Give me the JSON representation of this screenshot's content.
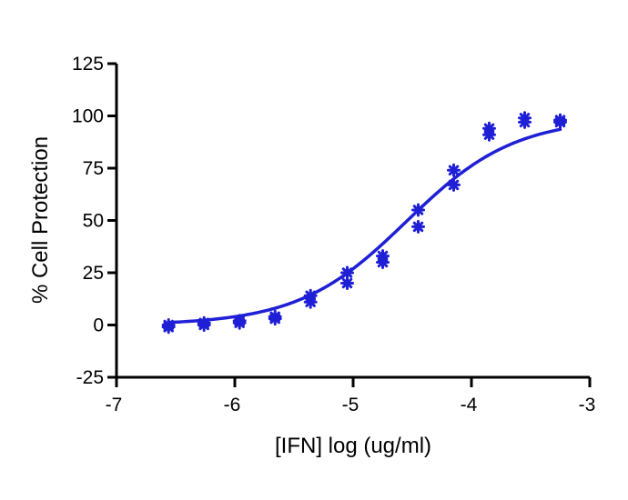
{
  "chart_data": {
    "type": "scatter",
    "title": "",
    "xlabel": "[IFN] log (ug/ml)",
    "ylabel": "% Cell Protection",
    "xlim": [
      -7,
      -3
    ],
    "ylim": [
      -25,
      125
    ],
    "x_ticks": [
      -7,
      -6,
      -5,
      -4,
      -3
    ],
    "y_ticks": [
      -25,
      0,
      25,
      50,
      75,
      100,
      125
    ],
    "x_tick_labels": [
      "-7",
      "-6",
      "-5",
      "-4",
      "-3"
    ],
    "y_tick_labels": [
      "-25",
      "0",
      "25",
      "50",
      "75",
      "100",
      "125"
    ],
    "grid": false,
    "colors": {
      "series": "#1f1fd6",
      "axis": "#000000"
    },
    "marker": "asterisk",
    "series": [
      {
        "points": [
          [
            -6.56,
            -1
          ],
          [
            -6.56,
            0
          ],
          [
            -6.26,
            0
          ],
          [
            -6.26,
            1
          ],
          [
            -5.96,
            1
          ],
          [
            -5.96,
            2
          ],
          [
            -5.66,
            3
          ],
          [
            -5.66,
            4
          ],
          [
            -5.36,
            11
          ],
          [
            -5.36,
            14
          ],
          [
            -5.05,
            20
          ],
          [
            -5.05,
            25
          ],
          [
            -4.75,
            30
          ],
          [
            -4.75,
            33
          ],
          [
            -4.45,
            47
          ],
          [
            -4.45,
            55
          ],
          [
            -4.15,
            67
          ],
          [
            -4.15,
            74
          ],
          [
            -3.85,
            91
          ],
          [
            -3.85,
            94
          ],
          [
            -3.55,
            97
          ],
          [
            -3.55,
            99
          ],
          [
            -3.25,
            97
          ],
          [
            -3.25,
            98
          ]
        ]
      }
    ],
    "fit": {
      "curve": "sigmoidal dose-response",
      "bottom": 0,
      "top": 99,
      "log_ec50": -4.55,
      "hill_slope": 0.95,
      "x_range": [
        -6.56,
        -3.25
      ]
    }
  }
}
